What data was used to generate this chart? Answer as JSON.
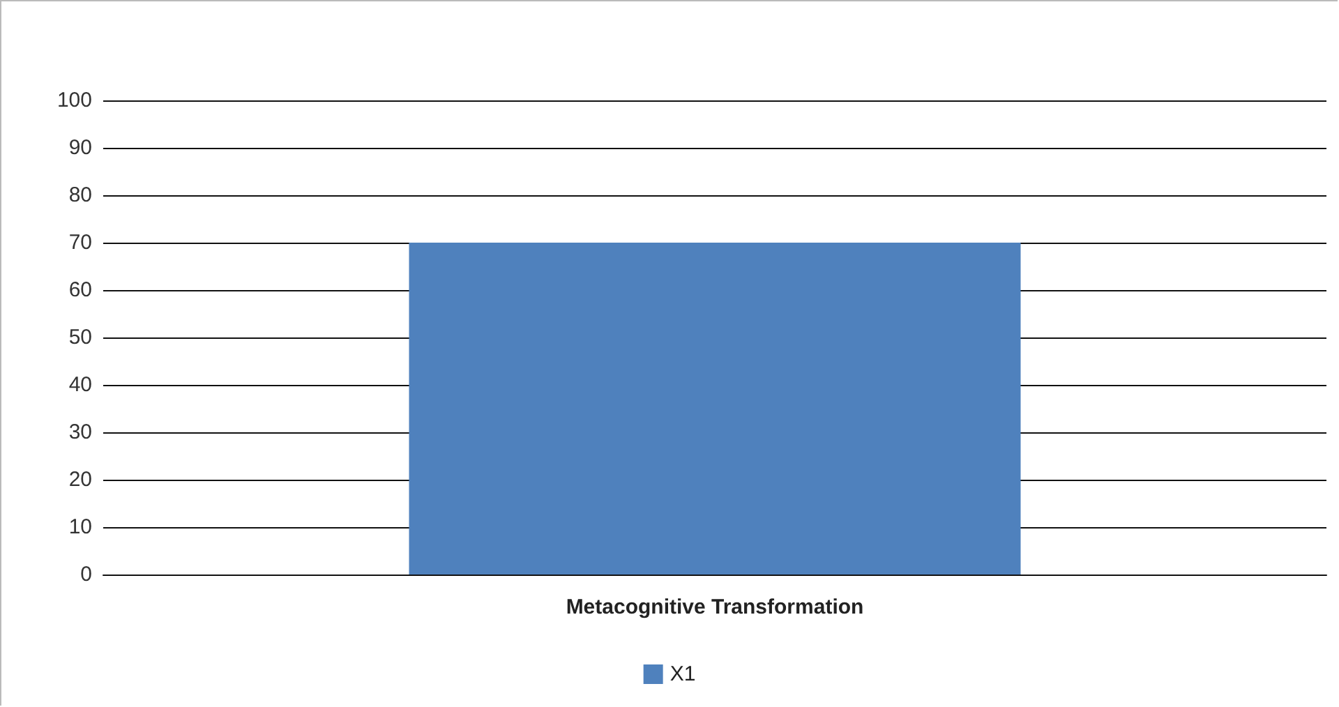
{
  "chart_data": {
    "type": "bar",
    "categories": [
      "Metacognitive Transformation"
    ],
    "series": [
      {
        "name": "X1",
        "color": "#4f81bd",
        "values": [
          70
        ]
      }
    ],
    "ylim": [
      0,
      100
    ],
    "yticks": [
      0,
      10,
      20,
      30,
      40,
      50,
      60,
      70,
      80,
      90,
      100
    ],
    "grid": "y",
    "legend": "bottom"
  }
}
